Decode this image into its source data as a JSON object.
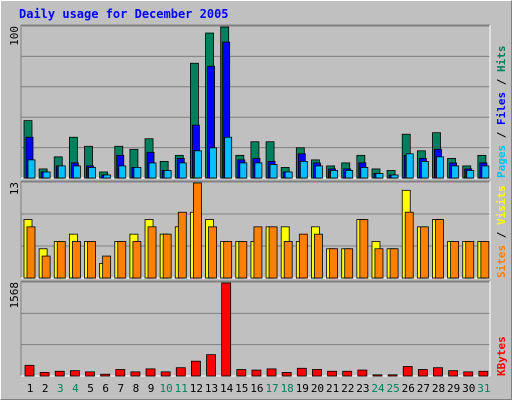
{
  "title": "Daily usage for December 2005",
  "colors": {
    "hits": "#00805c",
    "files": "#0000ff",
    "pages": "#00c0ff",
    "visits": "#ffff00",
    "sites": "#ff8000",
    "kbytes": "#ff0000",
    "weekend_label": "#00805c",
    "weekday_label": "#000000"
  },
  "chart_data": [
    {
      "type": "bar",
      "panel": "top",
      "ymax_label": "100",
      "right_label_parts": [
        {
          "text": "Pages",
          "color": "#00c0ff"
        },
        {
          "text": " / ",
          "color": "#000000"
        },
        {
          "text": "Files",
          "color": "#0000ff"
        },
        {
          "text": " / ",
          "color": "#000000"
        },
        {
          "text": "Hits",
          "color": "#00805c"
        }
      ],
      "ylim": [
        0,
        100
      ],
      "categories": [
        "1",
        "2",
        "3",
        "4",
        "5",
        "6",
        "7",
        "8",
        "9",
        "10",
        "11",
        "12",
        "13",
        "14",
        "15",
        "16",
        "17",
        "18",
        "19",
        "20",
        "21",
        "22",
        "23",
        "24",
        "25",
        "26",
        "27",
        "28",
        "29",
        "30",
        "31"
      ],
      "series": [
        {
          "name": "Hits",
          "color": "#00805c",
          "values": [
            38,
            6,
            14,
            27,
            21,
            4,
            21,
            19,
            26,
            11,
            15,
            76,
            96,
            100,
            15,
            24,
            24,
            7,
            20,
            12,
            8,
            10,
            15,
            6,
            5,
            29,
            18,
            30,
            13,
            8,
            15
          ]
        },
        {
          "name": "Files",
          "color": "#0000ff",
          "values": [
            27,
            4,
            8,
            10,
            8,
            2,
            15,
            7,
            17,
            5,
            13,
            35,
            74,
            90,
            12,
            13,
            11,
            4,
            16,
            10,
            6,
            6,
            10,
            3,
            2,
            15,
            13,
            19,
            10,
            6,
            10
          ]
        },
        {
          "name": "Pages",
          "color": "#00c0ff",
          "values": [
            12,
            4,
            8,
            8,
            7,
            2,
            8,
            7,
            10,
            5,
            10,
            18,
            20,
            27,
            10,
            10,
            9,
            4,
            11,
            8,
            5,
            5,
            7,
            3,
            2,
            16,
            11,
            14,
            8,
            5,
            8
          ]
        }
      ]
    },
    {
      "type": "bar",
      "panel": "middle",
      "ymax_label": "13",
      "right_label_parts": [
        {
          "text": "Sites",
          "color": "#ff8000"
        },
        {
          "text": " / ",
          "color": "#000000"
        },
        {
          "text": "Visits",
          "color": "#ffff00"
        }
      ],
      "ylim": [
        0,
        13
      ],
      "categories": [
        "1",
        "2",
        "3",
        "4",
        "5",
        "6",
        "7",
        "8",
        "9",
        "10",
        "11",
        "12",
        "13",
        "14",
        "15",
        "16",
        "17",
        "18",
        "19",
        "20",
        "21",
        "22",
        "23",
        "24",
        "25",
        "26",
        "27",
        "28",
        "29",
        "30",
        "31"
      ],
      "series": [
        {
          "name": "Visits",
          "color": "#ffff00",
          "values": [
            8,
            4,
            5,
            6,
            5,
            2,
            5,
            6,
            8,
            6,
            7,
            9,
            8,
            5,
            5,
            5,
            7,
            7,
            5,
            7,
            4,
            4,
            8,
            5,
            4,
            12,
            7,
            8,
            5,
            5,
            5
          ]
        },
        {
          "name": "Sites",
          "color": "#ff8000",
          "values": [
            7,
            3,
            5,
            5,
            5,
            3,
            5,
            5,
            7,
            6,
            9,
            13,
            7,
            5,
            5,
            7,
            7,
            5,
            6,
            6,
            4,
            4,
            8,
            4,
            4,
            9,
            7,
            8,
            5,
            5,
            5
          ]
        }
      ]
    },
    {
      "type": "bar",
      "panel": "bottom",
      "ymax_label": "1568",
      "right_label_parts": [
        {
          "text": "KBytes",
          "color": "#ff0000"
        }
      ],
      "ylim": [
        0,
        1568
      ],
      "categories": [
        "1",
        "2",
        "3",
        "4",
        "5",
        "6",
        "7",
        "8",
        "9",
        "10",
        "11",
        "12",
        "13",
        "14",
        "15",
        "16",
        "17",
        "18",
        "19",
        "20",
        "21",
        "22",
        "23",
        "24",
        "25",
        "26",
        "27",
        "28",
        "29",
        "30",
        "31"
      ],
      "series": [
        {
          "name": "KBytes",
          "color": "#ff0000",
          "values": [
            180,
            60,
            80,
            90,
            70,
            30,
            110,
            70,
            120,
            70,
            140,
            250,
            360,
            1568,
            110,
            100,
            120,
            60,
            130,
            110,
            80,
            80,
            100,
            20,
            20,
            160,
            110,
            140,
            90,
            70,
            80
          ]
        }
      ]
    }
  ]
}
